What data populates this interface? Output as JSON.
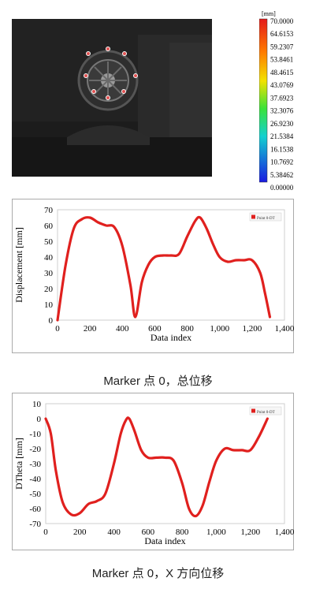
{
  "colorbar": {
    "unit": "[mm]",
    "labels": [
      "70.0000",
      "64.6153",
      "59.2307",
      "53.8461",
      "48.4615",
      "43.0769",
      "37.6923",
      "32.3076",
      "26.9230",
      "21.5384",
      "16.1538",
      "10.7692",
      "5.38462",
      "0.00000"
    ]
  },
  "captions": {
    "top": "Marker 点 0，总位移",
    "bottom": "Marker 点 0，X 方向位移"
  },
  "chart_data": [
    {
      "type": "line",
      "xlabel": "Data index",
      "ylabel": "Displacement [mm]",
      "legend": "Point 0-DT",
      "xlim": [
        0,
        1400
      ],
      "ylim": [
        0,
        70
      ],
      "xticks": [
        "0",
        "200",
        "400",
        "600",
        "800",
        "1,000",
        "1,200",
        "1,400"
      ],
      "yticks": [
        "0",
        "10",
        "20",
        "30",
        "40",
        "50",
        "60",
        "70"
      ],
      "series": [
        {
          "name": "Point 0-DT",
          "color": "#e0201e",
          "x": [
            0,
            50,
            100,
            150,
            200,
            250,
            300,
            350,
            400,
            450,
            480,
            520,
            560,
            600,
            650,
            700,
            750,
            800,
            850,
            880,
            920,
            960,
            1000,
            1050,
            1100,
            1150,
            1200,
            1250,
            1280,
            1310
          ],
          "y": [
            0,
            35,
            58,
            64,
            65,
            62,
            60,
            59,
            47,
            22,
            2,
            24,
            35,
            40,
            41,
            41,
            42,
            53,
            63,
            65,
            58,
            48,
            40,
            37,
            38,
            38,
            38,
            30,
            17,
            2
          ]
        }
      ]
    },
    {
      "type": "line",
      "xlabel": "Data index",
      "ylabel": "DTheta [mm]",
      "legend": "Point 0-DT",
      "xlim": [
        0,
        1400
      ],
      "ylim": [
        -70,
        10
      ],
      "xticks": [
        "0",
        "200",
        "400",
        "600",
        "800",
        "1,000",
        "1,200",
        "1,400"
      ],
      "yticks": [
        "10",
        "0",
        "-10",
        "-20",
        "-30",
        "-40",
        "-50",
        "-60",
        "-70"
      ],
      "series": [
        {
          "name": "Point 0-DT",
          "color": "#e0201e",
          "x": [
            0,
            30,
            60,
            100,
            150,
            200,
            250,
            300,
            350,
            400,
            440,
            470,
            490,
            520,
            560,
            600,
            650,
            700,
            750,
            800,
            840,
            880,
            920,
            960,
            1000,
            1050,
            1100,
            1150,
            1200,
            1250,
            1300
          ],
          "y": [
            0,
            -10,
            -35,
            -56,
            -64,
            -63,
            -57,
            -55,
            -50,
            -30,
            -10,
            -1,
            0,
            -8,
            -21,
            -26,
            -26,
            -26,
            -28,
            -43,
            -60,
            -65,
            -58,
            -42,
            -28,
            -20,
            -21,
            -21,
            -21,
            -12,
            0
          ]
        }
      ]
    }
  ]
}
